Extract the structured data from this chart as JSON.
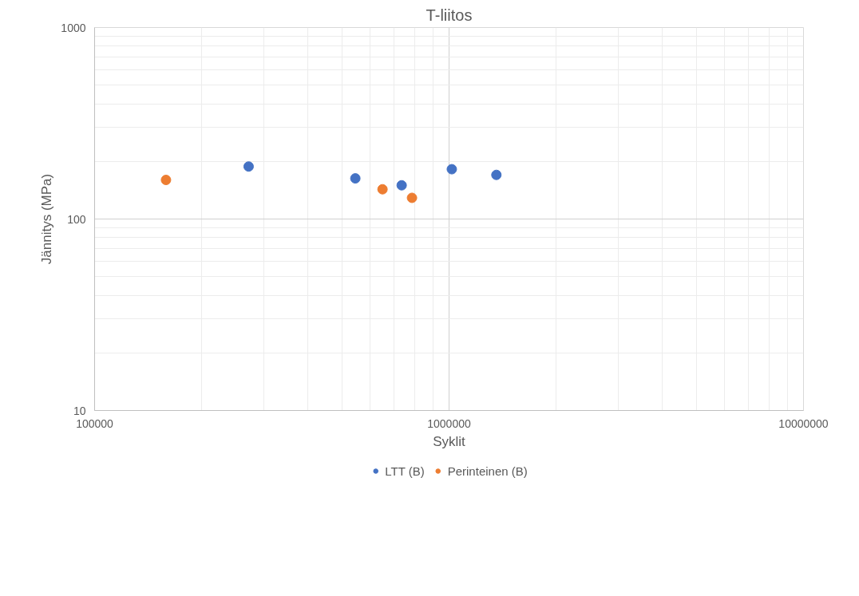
{
  "chart_data": {
    "type": "scatter",
    "title": "T-liitos",
    "xlabel": "Syklit",
    "ylabel": "Jännitys (MPa)",
    "log": "xy",
    "grid": true,
    "legend": "bottom",
    "marker": "circle",
    "xlim": [
      100000,
      10000000
    ],
    "xticks": [
      100000,
      1000000,
      10000000
    ],
    "ylim": [
      10,
      1000
    ],
    "yticks": [
      10,
      100,
      1000
    ],
    "series": [
      {
        "name": "LTT (B)",
        "color": "#4472c4",
        "x": [
          272000,
          544000,
          735000,
          1018000,
          1360000
        ],
        "values": [
          188,
          163,
          150,
          182,
          170
        ]
      },
      {
        "name": "Perinteinen (B)",
        "color": "#ed7d31",
        "x": [
          159000,
          649000,
          786000
        ],
        "values": [
          160,
          143,
          129
        ]
      }
    ]
  }
}
